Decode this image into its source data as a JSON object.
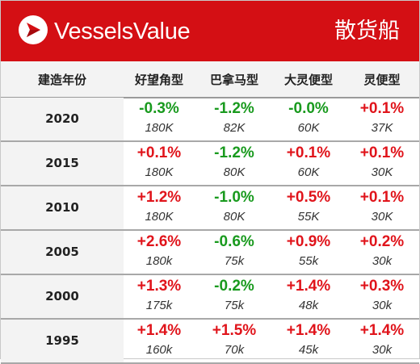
{
  "header": {
    "brand": "VesselsValue",
    "category": "散货船",
    "logo_icon": "vesselsvalue-logo-icon",
    "background_color": "#d40f14"
  },
  "columns": [
    "建造年份",
    "好望角型",
    "巴拿马型",
    "大灵便型",
    "灵便型"
  ],
  "colors": {
    "positive": "#e0141b",
    "negative": "#199a1e"
  },
  "rows": [
    {
      "year": "2020",
      "cells": [
        {
          "pct": "-0.3%",
          "val": "180K",
          "sign": "neg"
        },
        {
          "pct": "-1.2%",
          "val": "82K",
          "sign": "neg"
        },
        {
          "pct": "-0.0%",
          "val": "60K",
          "sign": "neg"
        },
        {
          "pct": "+0.1%",
          "val": "37K",
          "sign": "pos"
        }
      ]
    },
    {
      "year": "2015",
      "cells": [
        {
          "pct": "+0.1%",
          "val": "180K",
          "sign": "pos"
        },
        {
          "pct": "-1.2%",
          "val": "80K",
          "sign": "neg"
        },
        {
          "pct": "+0.1%",
          "val": "60K",
          "sign": "pos"
        },
        {
          "pct": "+0.1%",
          "val": "30K",
          "sign": "pos"
        }
      ]
    },
    {
      "year": "2010",
      "cells": [
        {
          "pct": "+1.2%",
          "val": "180K",
          "sign": "pos"
        },
        {
          "pct": "-1.0%",
          "val": "80K",
          "sign": "neg"
        },
        {
          "pct": "+0.5%",
          "val": "55K",
          "sign": "pos"
        },
        {
          "pct": "+0.1%",
          "val": "30K",
          "sign": "pos"
        }
      ]
    },
    {
      "year": "2005",
      "cells": [
        {
          "pct": "+2.6%",
          "val": "180k",
          "sign": "pos"
        },
        {
          "pct": "-0.6%",
          "val": "75k",
          "sign": "neg"
        },
        {
          "pct": "+0.9%",
          "val": "55k",
          "sign": "pos"
        },
        {
          "pct": "+0.2%",
          "val": "30k",
          "sign": "pos"
        }
      ]
    },
    {
      "year": "2000",
      "cells": [
        {
          "pct": "+1.3%",
          "val": "175k",
          "sign": "pos"
        },
        {
          "pct": "-0.2%",
          "val": "75k",
          "sign": "neg"
        },
        {
          "pct": "+1.4%",
          "val": "48k",
          "sign": "pos"
        },
        {
          "pct": "+0.3%",
          "val": "30k",
          "sign": "pos"
        }
      ]
    },
    {
      "year": "1995",
      "cells": [
        {
          "pct": "+1.4%",
          "val": "160k",
          "sign": "pos"
        },
        {
          "pct": "+1.5%",
          "val": "70k",
          "sign": "pos"
        },
        {
          "pct": "+1.4%",
          "val": "45k",
          "sign": "pos"
        },
        {
          "pct": "+1.4%",
          "val": "30k",
          "sign": "pos"
        }
      ]
    }
  ]
}
